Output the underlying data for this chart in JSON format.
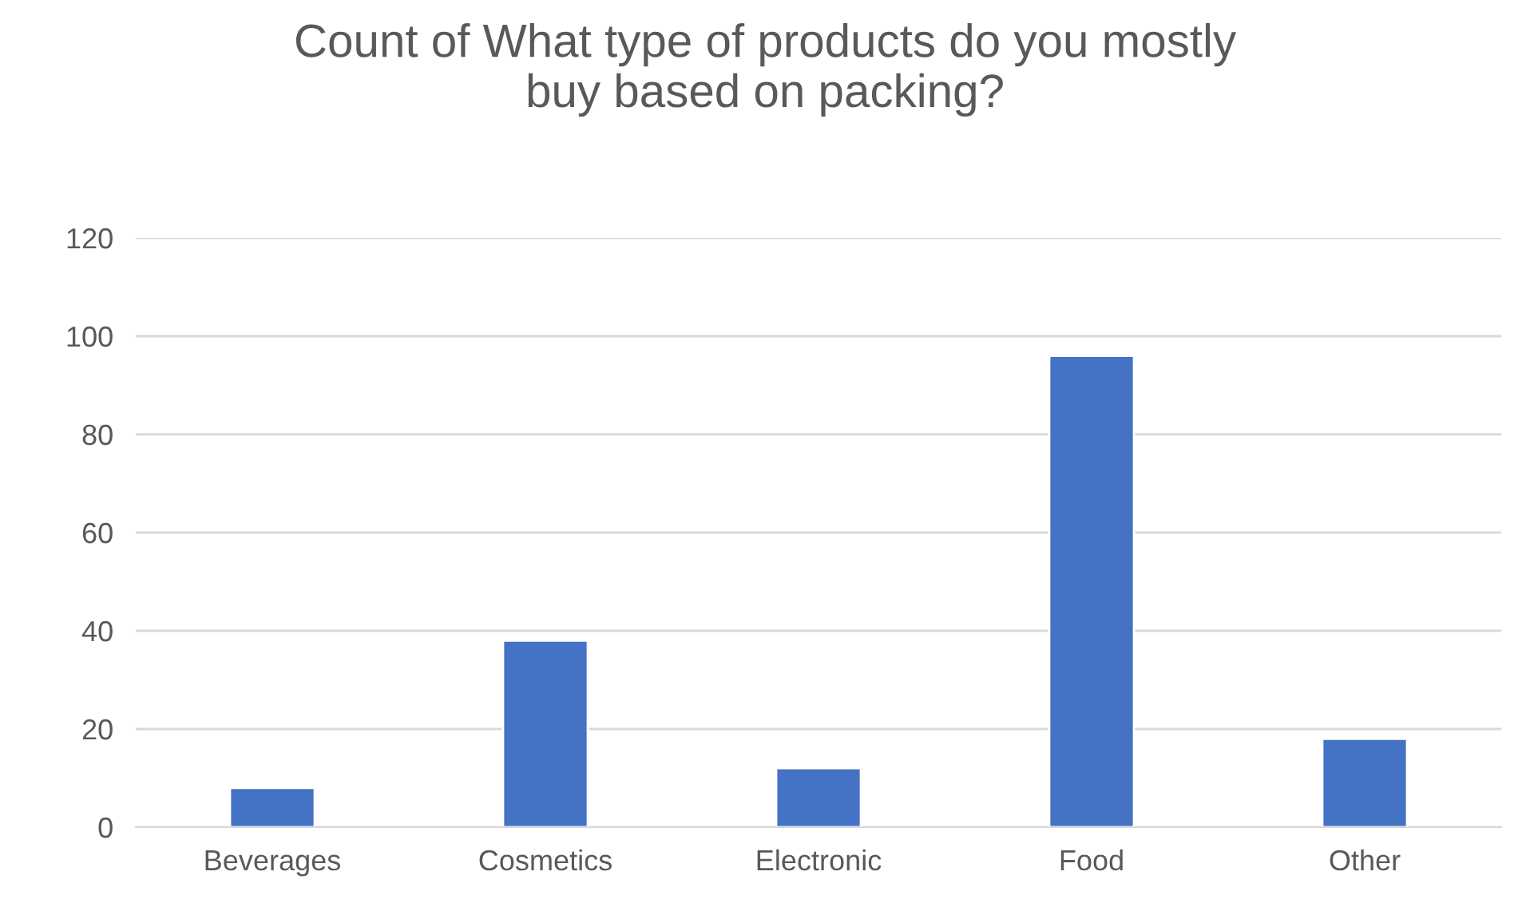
{
  "chart_data": {
    "type": "bar",
    "title": "Count of What type of products do you mostly\nbuy based on packing?",
    "categories": [
      "Beverages",
      "Cosmetics",
      "Electronic",
      "Food",
      "Other"
    ],
    "values": [
      8,
      38,
      12,
      96,
      18
    ],
    "color": "#4472c4",
    "ylim": [
      0,
      120
    ],
    "yticks": [
      0,
      20,
      40,
      60,
      80,
      100,
      120
    ],
    "grid": "y",
    "legend": false
  }
}
